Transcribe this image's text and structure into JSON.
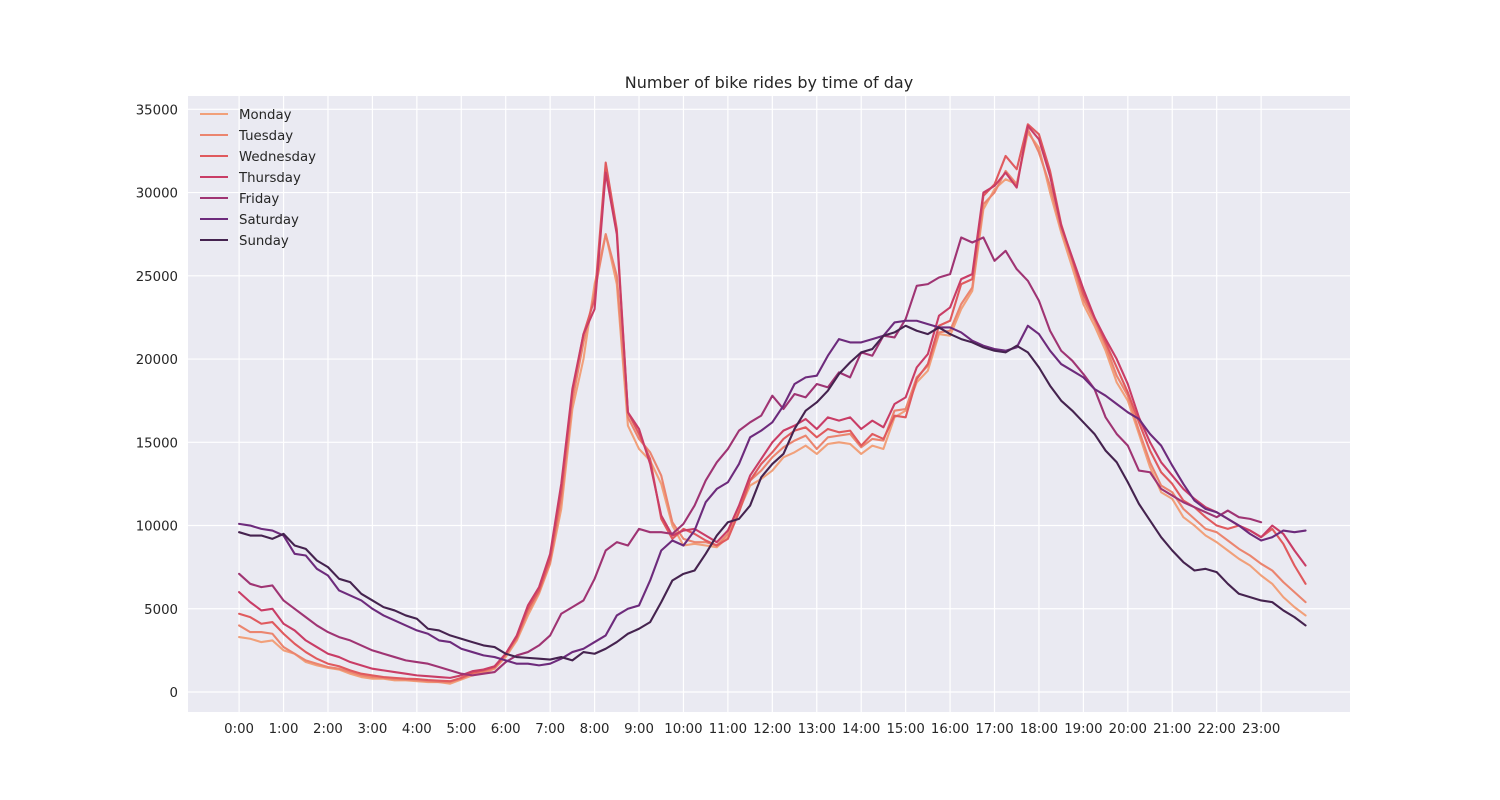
{
  "chart_data": {
    "type": "line",
    "title": "Number of bike rides by time of day",
    "xlabel": "",
    "ylabel": "",
    "x_tick_labels": [
      "0:00",
      "1:00",
      "2:00",
      "3:00",
      "4:00",
      "5:00",
      "6:00",
      "7:00",
      "8:00",
      "9:00",
      "10:00",
      "11:00",
      "12:00",
      "13:00",
      "14:00",
      "15:00",
      "16:00",
      "17:00",
      "18:00",
      "19:00",
      "20:00",
      "21:00",
      "22:00",
      "23:00"
    ],
    "y_ticks": [
      0,
      5000,
      10000,
      15000,
      20000,
      25000,
      30000,
      35000
    ],
    "y_tick_labels": [
      "0",
      "5000",
      "10000",
      "15000",
      "20000",
      "25000",
      "30000",
      "35000"
    ],
    "xlim": [
      -1.15,
      25.0
    ],
    "ylim": [
      -1200,
      35800
    ],
    "x_step_hours": 0.25,
    "grid": true,
    "legend_position": "top-left",
    "series": [
      {
        "name": "Monday",
        "color": "#f1a07a",
        "values": [
          3300,
          3200,
          3000,
          3100,
          2500,
          2300,
          1800,
          1600,
          1450,
          1350,
          1100,
          900,
          800,
          800,
          700,
          700,
          650,
          600,
          600,
          500,
          750,
          1000,
          1150,
          1400,
          2100,
          3100,
          4600,
          5900,
          7700,
          11000,
          17000,
          20000,
          24500,
          27500,
          24500,
          16000,
          14600,
          13900,
          12500,
          10000,
          8800,
          8900,
          8800,
          8700,
          9300,
          10900,
          12400,
          12800,
          13300,
          14100,
          14400,
          14800,
          14300,
          14900,
          15000,
          14900,
          14300,
          14800,
          14600,
          16500,
          16900,
          18600,
          19300,
          21500,
          21400,
          23000,
          24100,
          29000,
          30200,
          30800,
          30500,
          33600,
          32700,
          30000,
          27600,
          25500,
          23300,
          22000,
          20500,
          18600,
          17500,
          15500,
          13500,
          12000,
          11600,
          10500,
          10000,
          9400,
          9000,
          8500,
          8000,
          7600,
          7000,
          6500,
          5700,
          5100,
          4600
        ]
      },
      {
        "name": "Tuesday",
        "color": "#eb856f",
        "values": [
          4000,
          3600,
          3600,
          3500,
          2700,
          2300,
          1900,
          1700,
          1500,
          1400,
          1200,
          1000,
          900,
          850,
          780,
          750,
          700,
          650,
          600,
          600,
          800,
          1100,
          1200,
          1450,
          2200,
          3200,
          4800,
          6000,
          7800,
          11500,
          17500,
          21000,
          24000,
          27500,
          25000,
          16500,
          15200,
          14400,
          13000,
          10200,
          9200,
          9000,
          9000,
          8800,
          9500,
          11100,
          12700,
          13300,
          14100,
          14700,
          15100,
          15400,
          14600,
          15300,
          15400,
          15500,
          14700,
          15200,
          15100,
          16900,
          17000,
          18900,
          19600,
          21600,
          21700,
          23300,
          24300,
          29300,
          30000,
          31300,
          30500,
          33800,
          32400,
          30400,
          27800,
          25900,
          23600,
          22300,
          20800,
          19000,
          17800,
          15700,
          13800,
          12400,
          12000,
          11000,
          10400,
          9800,
          9600,
          9100,
          8600,
          8200,
          7700,
          7300,
          6600,
          6000,
          5400
        ]
      },
      {
        "name": "Wednesday",
        "color": "#e05a5e",
        "values": [
          4700,
          4500,
          4100,
          4200,
          3500,
          2900,
          2400,
          2000,
          1700,
          1550,
          1300,
          1100,
          1000,
          900,
          850,
          800,
          780,
          720,
          680,
          650,
          850,
          1150,
          1300,
          1500,
          2300,
          3300,
          5000,
          6100,
          8000,
          12000,
          18000,
          21500,
          23600,
          31800,
          27800,
          16800,
          15500,
          14000,
          10400,
          9200,
          9800,
          9500,
          9100,
          8800,
          9200,
          10800,
          12700,
          13700,
          14400,
          15200,
          15700,
          15900,
          15300,
          15800,
          15600,
          15700,
          14800,
          15500,
          15200,
          16600,
          16500,
          18800,
          19700,
          22000,
          22300,
          24500,
          24800,
          29800,
          30500,
          32200,
          31400,
          34100,
          33500,
          31300,
          28100,
          26000,
          23900,
          22500,
          21000,
          19500,
          18000,
          16200,
          14500,
          13200,
          12500,
          11500,
          11100,
          10500,
          10000,
          9800,
          10000,
          9700,
          9300,
          9800,
          8900,
          7600,
          6500
        ]
      },
      {
        "name": "Thursday",
        "color": "#c93d66",
        "values": [
          6000,
          5400,
          4900,
          5000,
          4100,
          3700,
          3100,
          2700,
          2300,
          2100,
          1800,
          1600,
          1400,
          1300,
          1200,
          1100,
          1000,
          950,
          900,
          850,
          1000,
          1250,
          1350,
          1550,
          2300,
          3400,
          5200,
          6300,
          8300,
          12500,
          18200,
          21500,
          23000,
          31200,
          27500,
          16800,
          15800,
          13700,
          10600,
          9400,
          9700,
          9800,
          9400,
          9000,
          9700,
          11200,
          13000,
          14000,
          15000,
          15700,
          16000,
          16400,
          15800,
          16500,
          16300,
          16500,
          15800,
          16300,
          15900,
          17300,
          17700,
          19500,
          20300,
          22600,
          23100,
          24800,
          25100,
          30000,
          30400,
          31200,
          30300,
          34000,
          33200,
          31000,
          28000,
          26100,
          24200,
          22500,
          21200,
          20000,
          18500,
          16500,
          15000,
          13800,
          13000,
          12200,
          11600,
          11100,
          10800,
          10400,
          10000,
          9700,
          9300,
          10000,
          9500,
          8500,
          7600
        ]
      },
      {
        "name": "Friday",
        "color": "#9f3473",
        "values": [
          7100,
          6500,
          6300,
          6400,
          5500,
          5000,
          4500,
          4000,
          3600,
          3300,
          3100,
          2800,
          2500,
          2300,
          2100,
          1900,
          1800,
          1700,
          1500,
          1300,
          1100,
          1000,
          1100,
          1200,
          1800,
          2200,
          2400,
          2800,
          3400,
          4700,
          5100,
          5500,
          6800,
          8500,
          9000,
          8800,
          9800,
          9600,
          9600,
          9500,
          10100,
          11200,
          12700,
          13800,
          14600,
          15700,
          16200,
          16600,
          17800,
          17000,
          17900,
          17700,
          18500,
          18300,
          19200,
          18900,
          20400,
          20200,
          21400,
          21300,
          22400,
          24400,
          24500,
          24900,
          25100,
          27300,
          27000,
          27300,
          25900,
          26500,
          25400,
          24700,
          23500,
          21700,
          20500,
          19900,
          19100,
          18200,
          16500,
          15500,
          14800,
          13300,
          13200,
          12200,
          11800,
          11400,
          11100,
          10800,
          10500,
          10900,
          10500,
          10400,
          10200
        ]
      },
      {
        "name": "Saturday",
        "color": "#6d2b7c",
        "values": [
          10100,
          10000,
          9800,
          9700,
          9400,
          8300,
          8200,
          7400,
          7000,
          6100,
          5800,
          5500,
          5000,
          4600,
          4300,
          4000,
          3700,
          3500,
          3100,
          3000,
          2600,
          2400,
          2200,
          2100,
          1900,
          1700,
          1700,
          1600,
          1700,
          2000,
          2400,
          2600,
          3000,
          3400,
          4600,
          5000,
          5200,
          6700,
          8500,
          9100,
          8800,
          9700,
          11400,
          12200,
          12600,
          13700,
          15300,
          15700,
          16200,
          17200,
          18500,
          18900,
          19000,
          20200,
          21200,
          21000,
          21000,
          21200,
          21400,
          22200,
          22300,
          22300,
          22100,
          21900,
          21900,
          21600,
          21100,
          20800,
          20600,
          20500,
          20700,
          22000,
          21500,
          20500,
          19700,
          19300,
          18900,
          18200,
          17800,
          17300,
          16800,
          16400,
          15500,
          14800,
          13600,
          12500,
          11500,
          11000,
          10800,
          10400,
          10000,
          9500,
          9100,
          9300,
          9700,
          9600,
          9700
        ]
      },
      {
        "name": "Sunday",
        "color": "#45234f",
        "values": [
          9600,
          9400,
          9400,
          9200,
          9500,
          8800,
          8600,
          7900,
          7500,
          6800,
          6600,
          5900,
          5500,
          5100,
          4900,
          4600,
          4400,
          3800,
          3700,
          3400,
          3200,
          3000,
          2800,
          2700,
          2300,
          2100,
          2050,
          2000,
          1950,
          2100,
          1900,
          2400,
          2300,
          2600,
          3000,
          3500,
          3800,
          4200,
          5400,
          6700,
          7100,
          7300,
          8300,
          9400,
          10200,
          10400,
          11200,
          12900,
          13700,
          14300,
          15800,
          16900,
          17400,
          18100,
          19100,
          19800,
          20400,
          20600,
          21400,
          21600,
          22000,
          21700,
          21500,
          21900,
          21500,
          21200,
          21000,
          20700,
          20500,
          20400,
          20800,
          20400,
          19500,
          18400,
          17500,
          16900,
          16200,
          15500,
          14500,
          13800,
          12600,
          11300,
          10300,
          9300,
          8500,
          7800,
          7300,
          7400,
          7200,
          6500,
          5900,
          5700,
          5500,
          5400,
          4900,
          4500,
          4000
        ]
      }
    ]
  }
}
